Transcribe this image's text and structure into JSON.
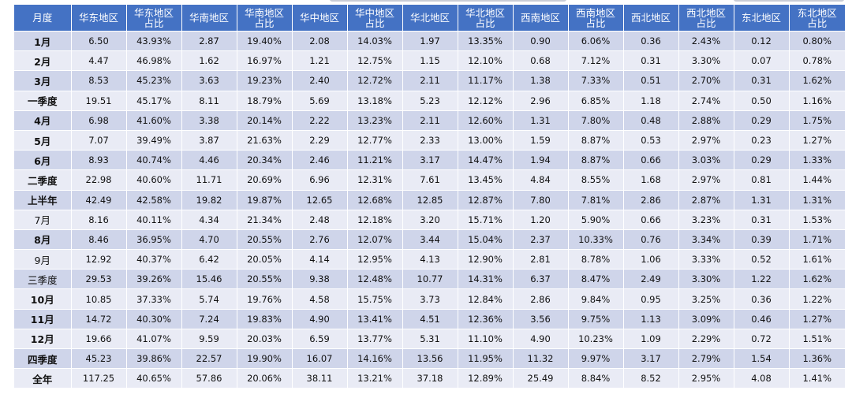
{
  "table": {
    "headers": [
      "月度",
      "华东地区",
      "华东地区占比",
      "华南地区",
      "华南地区占比",
      "华中地区",
      "华中地区占比",
      "华北地区",
      "华北地区占比",
      "西南地区",
      "西南地区占比",
      "西北地区",
      "西北地区占比",
      "东北地区",
      "东北地区占比"
    ],
    "rows": [
      [
        "1月",
        "6.50",
        "43.93%",
        "2.87",
        "19.40%",
        "2.08",
        "14.03%",
        "1.97",
        "13.35%",
        "0.90",
        "6.06%",
        "0.36",
        "2.43%",
        "0.12",
        "0.80%"
      ],
      [
        "2月",
        "4.47",
        "46.98%",
        "1.62",
        "16.97%",
        "1.21",
        "12.75%",
        "1.15",
        "12.10%",
        "0.68",
        "7.12%",
        "0.31",
        "3.30%",
        "0.07",
        "0.78%"
      ],
      [
        "3月",
        "8.53",
        "45.23%",
        "3.63",
        "19.23%",
        "2.40",
        "12.72%",
        "2.11",
        "11.17%",
        "1.38",
        "7.33%",
        "0.51",
        "2.70%",
        "0.31",
        "1.62%"
      ],
      [
        "一季度",
        "19.51",
        "45.17%",
        "8.11",
        "18.79%",
        "5.69",
        "13.18%",
        "5.23",
        "12.12%",
        "2.96",
        "6.85%",
        "1.18",
        "2.74%",
        "0.50",
        "1.16%"
      ],
      [
        "4月",
        "6.98",
        "41.60%",
        "3.38",
        "20.14%",
        "2.22",
        "13.23%",
        "2.11",
        "12.60%",
        "1.31",
        "7.80%",
        "0.48",
        "2.88%",
        "0.29",
        "1.75%"
      ],
      [
        "5月",
        "7.07",
        "39.49%",
        "3.87",
        "21.63%",
        "2.29",
        "12.77%",
        "2.33",
        "13.00%",
        "1.59",
        "8.87%",
        "0.53",
        "2.97%",
        "0.23",
        "1.27%"
      ],
      [
        "6月",
        "8.93",
        "40.74%",
        "4.46",
        "20.34%",
        "2.46",
        "11.21%",
        "3.17",
        "14.47%",
        "1.94",
        "8.87%",
        "0.66",
        "3.03%",
        "0.29",
        "1.33%"
      ],
      [
        "二季度",
        "22.98",
        "40.60%",
        "11.71",
        "20.69%",
        "6.96",
        "12.31%",
        "7.61",
        "13.45%",
        "4.84",
        "8.55%",
        "1.68",
        "2.97%",
        "0.81",
        "1.44%"
      ],
      [
        "上半年",
        "42.49",
        "42.58%",
        "19.82",
        "19.87%",
        "12.65",
        "12.68%",
        "12.85",
        "12.87%",
        "7.80",
        "7.81%",
        "2.86",
        "2.87%",
        "1.31",
        "1.31%"
      ],
      [
        "7月",
        "8.16",
        "40.11%",
        "4.34",
        "21.34%",
        "2.48",
        "12.18%",
        "3.20",
        "15.71%",
        "1.20",
        "5.90%",
        "0.66",
        "3.23%",
        "0.31",
        "1.53%"
      ],
      [
        "8月",
        "8.46",
        "36.95%",
        "4.70",
        "20.55%",
        "2.76",
        "12.07%",
        "3.44",
        "15.04%",
        "2.37",
        "10.33%",
        "0.76",
        "3.34%",
        "0.39",
        "1.71%"
      ],
      [
        "9月",
        "12.92",
        "40.37%",
        "6.42",
        "20.05%",
        "4.14",
        "12.95%",
        "4.13",
        "12.90%",
        "2.81",
        "8.78%",
        "1.06",
        "3.33%",
        "0.52",
        "1.61%"
      ],
      [
        "三季度",
        "29.53",
        "39.26%",
        "15.46",
        "20.55%",
        "9.38",
        "12.48%",
        "10.77",
        "14.31%",
        "6.37",
        "8.47%",
        "2.49",
        "3.30%",
        "1.22",
        "1.62%"
      ],
      [
        "10月",
        "10.85",
        "37.33%",
        "5.74",
        "19.76%",
        "4.58",
        "15.75%",
        "3.73",
        "12.84%",
        "2.86",
        "9.84%",
        "0.95",
        "3.25%",
        "0.36",
        "1.22%"
      ],
      [
        "11月",
        "14.72",
        "40.30%",
        "7.24",
        "19.83%",
        "4.90",
        "13.41%",
        "4.51",
        "12.36%",
        "3.56",
        "9.75%",
        "1.13",
        "3.09%",
        "0.46",
        "1.27%"
      ],
      [
        "12月",
        "19.66",
        "41.07%",
        "9.59",
        "20.03%",
        "6.59",
        "13.77%",
        "5.31",
        "11.10%",
        "4.90",
        "10.23%",
        "1.09",
        "2.29%",
        "0.72",
        "1.51%"
      ],
      [
        "四季度",
        "45.23",
        "39.86%",
        "22.57",
        "19.90%",
        "16.07",
        "14.16%",
        "13.56",
        "11.95%",
        "11.32",
        "9.97%",
        "3.17",
        "2.79%",
        "1.54",
        "1.36%"
      ],
      [
        "全年",
        "117.25",
        "40.65%",
        "57.86",
        "20.06%",
        "38.11",
        "13.21%",
        "37.18",
        "12.89%",
        "25.49",
        "8.84%",
        "8.52",
        "2.95%",
        "4.08",
        "1.41%"
      ]
    ],
    "light_label_rows": [
      9,
      11,
      12
    ]
  },
  "colors": {
    "header_bg": "#4472c4",
    "row_dark": "#cfd5ea",
    "row_light": "#e9ebf5"
  }
}
